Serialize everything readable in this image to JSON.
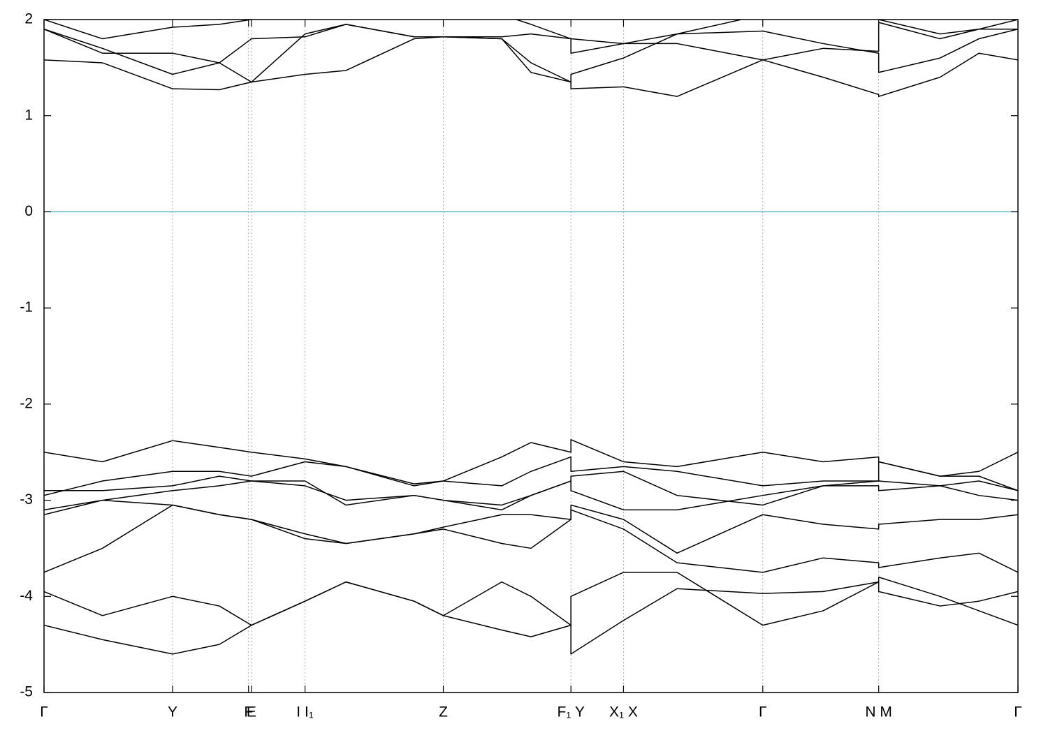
{
  "chart_data": {
    "type": "line",
    "x": [
      0,
      0.06,
      0.132,
      0.18,
      0.213,
      0.268,
      0.31,
      0.38,
      0.41,
      0.47,
      0.5,
      0.541,
      0.541,
      0.595,
      0.65,
      0.738,
      0.8,
      0.857,
      0.857,
      0.92,
      0.96,
      1
    ],
    "series": [
      {
        "color": "#000000",
        "values": [
          -4.3,
          -4.45,
          -4.6,
          -4.5,
          -4.3,
          -4.05,
          -3.85,
          -4.05,
          -4.2,
          -4.35,
          -4.42,
          -4.3,
          -4.6,
          -4.25,
          -3.92,
          -3.97,
          -3.95,
          -3.85,
          -3.95,
          -4.1,
          -4.05,
          -3.95
        ]
      },
      {
        "color": "#000000",
        "values": [
          -3.95,
          -4.2,
          -4.0,
          -4.1,
          -4.3,
          -4.05,
          -3.85,
          -4.05,
          -4.2,
          -3.85,
          -4.0,
          -4.3,
          -4.0,
          -3.75,
          -3.75,
          -4.3,
          -4.15,
          -3.85,
          -3.8,
          -4.0,
          -4.15,
          -4.3
        ]
      },
      {
        "color": "#000000",
        "values": [
          -3.75,
          -3.5,
          -3.05,
          -3.15,
          -3.2,
          -3.35,
          -3.45,
          -3.35,
          -3.3,
          -3.45,
          -3.5,
          -3.2,
          -3.1,
          -3.3,
          -3.65,
          -3.75,
          -3.6,
          -3.65,
          -3.7,
          -3.6,
          -3.55,
          -3.75
        ]
      },
      {
        "color": "#000000",
        "values": [
          -3.15,
          -3.0,
          -3.05,
          -3.15,
          -3.2,
          -3.4,
          -3.45,
          -3.35,
          -3.28,
          -3.15,
          -3.15,
          -3.2,
          -3.05,
          -3.2,
          -3.55,
          -3.15,
          -3.25,
          -3.3,
          -3.25,
          -3.2,
          -3.2,
          -3.15
        ]
      },
      {
        "color": "#000000",
        "values": [
          -3.1,
          -3.0,
          -2.9,
          -2.85,
          -2.8,
          -2.8,
          -3.05,
          -2.95,
          -3.0,
          -3.05,
          -2.95,
          -2.8,
          -2.9,
          -3.1,
          -3.1,
          -2.95,
          -2.85,
          -2.85,
          -2.9,
          -2.85,
          -2.95,
          -3.0
        ]
      },
      {
        "color": "#000000",
        "values": [
          -2.9,
          -2.9,
          -2.85,
          -2.75,
          -2.8,
          -2.85,
          -3.0,
          -2.95,
          -3.0,
          -3.1,
          -2.95,
          -2.8,
          -2.75,
          -2.7,
          -2.95,
          -3.05,
          -2.85,
          -2.8,
          -2.8,
          -2.85,
          -2.8,
          -2.9
        ]
      },
      {
        "color": "#000000",
        "values": [
          -2.95,
          -2.8,
          -2.7,
          -2.7,
          -2.75,
          -2.6,
          -2.65,
          -2.85,
          -2.8,
          -2.85,
          -2.7,
          -2.55,
          -2.7,
          -2.65,
          -2.7,
          -2.85,
          -2.8,
          -2.8,
          -2.6,
          -2.75,
          -2.75,
          -2.9
        ]
      },
      {
        "color": "#000000",
        "values": [
          -2.5,
          -2.6,
          -2.38,
          -2.45,
          -2.5,
          -2.57,
          -2.65,
          -2.83,
          -2.8,
          -2.55,
          -2.4,
          -2.5,
          -2.37,
          -2.6,
          -2.65,
          -2.5,
          -2.6,
          -2.55,
          -2.6,
          -2.75,
          -2.7,
          -2.5
        ]
      },
      {
        "color": "#000000",
        "values": [
          1.58,
          1.55,
          1.28,
          1.27,
          1.35,
          1.43,
          1.47,
          1.8,
          1.82,
          1.8,
          1.55,
          1.35,
          1.28,
          1.3,
          1.2,
          1.58,
          1.4,
          1.22,
          1.2,
          1.4,
          1.65,
          1.58
        ]
      },
      {
        "color": "#000000",
        "values": [
          1.9,
          1.7,
          1.43,
          1.55,
          1.35,
          1.85,
          1.95,
          1.82,
          1.82,
          1.8,
          1.45,
          1.35,
          1.43,
          1.6,
          1.85,
          1.88,
          1.75,
          1.65,
          1.45,
          1.6,
          1.8,
          1.9
        ]
      },
      {
        "color": "#000000",
        "values": [
          1.9,
          1.65,
          1.65,
          1.55,
          1.8,
          1.82,
          1.95,
          1.82,
          1.82,
          1.82,
          1.85,
          1.8,
          1.65,
          1.75,
          1.75,
          1.58,
          1.7,
          1.67,
          1.97,
          1.8,
          1.9,
          1.9
        ]
      },
      {
        "color": "#000000",
        "values": [
          2.0,
          1.8,
          1.92,
          1.95,
          2.0,
          2.05,
          2.05,
          2.05,
          2.05,
          2.05,
          1.95,
          1.8,
          1.8,
          1.75,
          1.85,
          2.05,
          2.05,
          2.05,
          2.0,
          1.85,
          1.9,
          2.0
        ]
      }
    ],
    "xlim": [
      0,
      1
    ],
    "xticks": [
      {
        "value": 0,
        "label": "Γ"
      },
      {
        "value": 0.132,
        "label": "Y"
      },
      {
        "value": 0.21,
        "label": "F"
      },
      {
        "value": 0.213,
        "label": "E"
      },
      {
        "value": 0.268,
        "label": "I  I₁"
      },
      {
        "value": 0.41,
        "label": "Z"
      },
      {
        "value": 0.541,
        "label": "F₁ Y"
      },
      {
        "value": 0.595,
        "label": "X₁ X"
      },
      {
        "value": 0.738,
        "label": "Γ"
      },
      {
        "value": 0.857,
        "label": "N M"
      },
      {
        "value": 1,
        "label": "Γ"
      }
    ],
    "ylim": [
      -5,
      2
    ],
    "yticks": [
      -5,
      -4,
      -3,
      -2,
      -1,
      0,
      1,
      2
    ],
    "hline": 0,
    "hline_color": "#5fb3c8",
    "grid": "x"
  }
}
